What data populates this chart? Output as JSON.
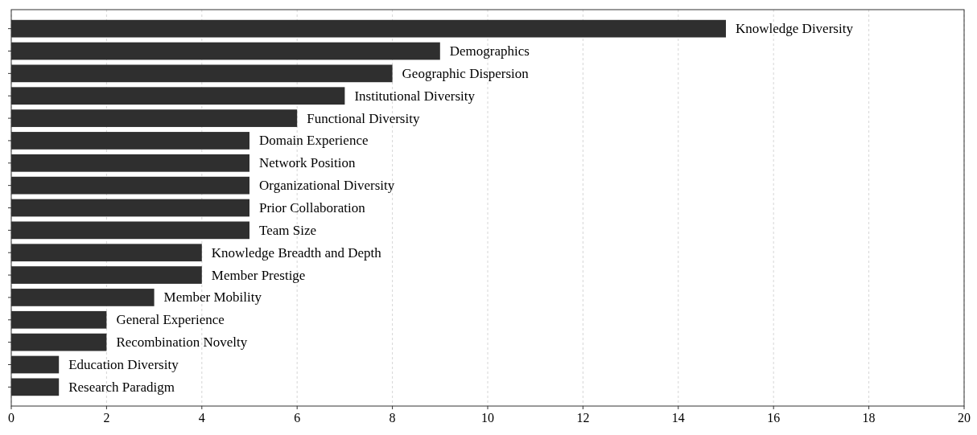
{
  "chart_data": {
    "type": "bar",
    "orientation": "horizontal",
    "categories": [
      "Knowledge Diversity",
      "Demographics",
      "Geographic Dispersion",
      "Institutional Diversity",
      "Functional Diversity",
      "Domain Experience",
      "Network Position",
      "Organizational Diversity",
      "Prior Collaboration",
      "Team Size",
      "Knowledge Breadth and Depth",
      "Member Prestige",
      "Member Mobility",
      "General Experience",
      "Recombination Novelty",
      "Education Diversity",
      "Research Paradigm"
    ],
    "values": [
      15,
      9,
      8,
      7,
      6,
      5,
      5,
      5,
      5,
      5,
      4,
      4,
      3,
      2,
      2,
      1,
      1
    ],
    "color": "#2f2f2f",
    "xlim": [
      0,
      20
    ],
    "xticks": [
      0,
      2,
      4,
      6,
      8,
      10,
      12,
      14,
      16,
      18,
      20
    ],
    "grid": "x"
  }
}
